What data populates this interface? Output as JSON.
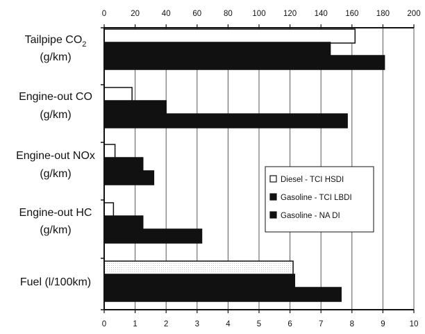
{
  "chart_data": {
    "type": "bar",
    "orientation": "horizontal",
    "top_axis": {
      "range": [
        0,
        200
      ],
      "ticks": [
        "0",
        "20",
        "40",
        "60",
        "80",
        "100",
        "120",
        "140",
        "160",
        "180",
        "200"
      ],
      "applies_to": "Tailpipe CO2 (g/km)"
    },
    "bottom_axis": {
      "range": [
        0,
        10
      ],
      "ticks": [
        "0",
        "1",
        "2",
        "3",
        "4",
        "5",
        "6",
        "7",
        "8",
        "9",
        "10"
      ]
    },
    "grid": "vertical",
    "legend_position": "right-middle",
    "categories": [
      {
        "lines": [
          "Tailpipe CO",
          "(g/km)"
        ],
        "subscript": "2"
      },
      {
        "lines": [
          "Engine-out CO",
          "(g/km)"
        ]
      },
      {
        "lines": [
          "Engine-out NOx",
          "(g/km)"
        ]
      },
      {
        "lines": [
          "Engine-out HC",
          "(g/km)"
        ]
      },
      {
        "lines": [
          "Fuel (l/100km)"
        ]
      }
    ],
    "series": [
      {
        "name": "Diesel - TCI HSDI",
        "fill": "#ffffff",
        "values": [
          8.1,
          0.9,
          0.35,
          0.3,
          6.1
        ]
      },
      {
        "name": "Gasoline - TCI LBDI",
        "fill": "#111111",
        "values": [
          7.3,
          2.0,
          1.25,
          1.25,
          6.15
        ]
      },
      {
        "name": "Gasoline - NA DI",
        "fill": "#111111",
        "values": [
          9.05,
          7.85,
          1.6,
          3.15,
          7.65
        ]
      }
    ],
    "value_scale_note": "Tailpipe CO2 values read on top axis = bottom value x 20"
  }
}
